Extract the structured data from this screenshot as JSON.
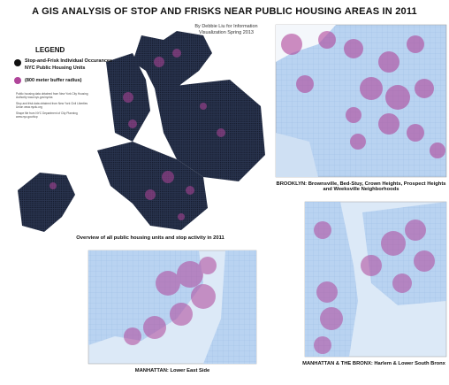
{
  "header": {
    "title": "A GIS ANALYSIS OF STOP AND FRISKS NEAR PUBLIC HOUSING AREAS IN 2011",
    "byline": [
      "By Debbie Liu for Information",
      "Visualization Spring 2013"
    ]
  },
  "legend": {
    "title": "LEGEND",
    "items": [
      "Stop-and-Frisk Individual Occurances",
      "NYC Public Housing Units",
      "(800 meter buffer radius)"
    ],
    "sources": [
      "Public housing data obtained from New York City Housing Authority www.nyc.gov/nycha",
      "Stop and frisk data obtained from New York Civil Liberties Union www.nyclu.org",
      "Shape file from NYC Department of City Planning www.nyc.gov/dcp"
    ]
  },
  "panels": [
    {
      "caption": "Overview of all public housing units and stop activity in 2011"
    },
    {
      "caption": "BROOKLYN: Brownsville, Bed-Stuy, Crown Heights, Prospect Heights and Weeksville Neighborhoods"
    },
    {
      "caption": "MANHATTAN: Lower East Side"
    },
    {
      "caption": "MANHATTAN & THE BRONX: Harlem & Lower South Bronx"
    }
  ]
}
